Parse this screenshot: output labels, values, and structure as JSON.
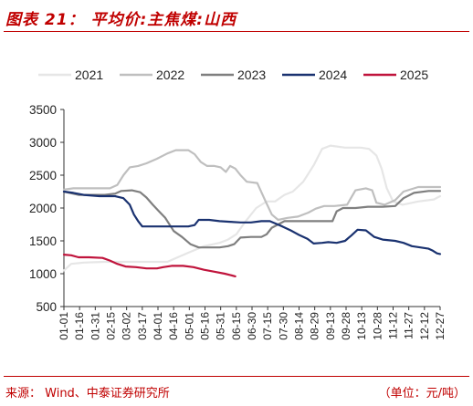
{
  "figure": {
    "title": "图表 21：  平均价:主焦煤:山西",
    "source": "来源：  Wind、中泰证券研究所",
    "unit": "（单位：元/吨）"
  },
  "chart_data": {
    "type": "line",
    "title": "平均价:主焦煤:山西",
    "ylim": [
      500,
      3500
    ],
    "yticks": [
      500,
      1000,
      1500,
      2000,
      2500,
      3000,
      3500
    ],
    "x_ticks": [
      "01-01",
      "01-16",
      "01-31",
      "02-15",
      "03-02",
      "03-17",
      "04-01",
      "04-16",
      "05-01",
      "05-16",
      "05-31",
      "06-15",
      "06-30",
      "07-15",
      "07-30",
      "08-14",
      "08-29",
      "09-13",
      "09-28",
      "10-13",
      "10-28",
      "11-12",
      "11-27",
      "12-12",
      "12-27"
    ],
    "x_unit": "day_of_year",
    "xlim": [
      1,
      361
    ],
    "grid": false,
    "legend_position": "top",
    "series": [
      {
        "name": "2021",
        "color": "#e6e6e6",
        "points": [
          [
            1,
            1050
          ],
          [
            8,
            1150
          ],
          [
            20,
            1170
          ],
          [
            40,
            1180
          ],
          [
            60,
            1180
          ],
          [
            80,
            1180
          ],
          [
            100,
            1180
          ],
          [
            110,
            1250
          ],
          [
            120,
            1320
          ],
          [
            135,
            1420
          ],
          [
            150,
            1470
          ],
          [
            158,
            1520
          ],
          [
            166,
            1600
          ],
          [
            175,
            1800
          ],
          [
            185,
            2000
          ],
          [
            195,
            2100
          ],
          [
            203,
            2100
          ],
          [
            212,
            2200
          ],
          [
            220,
            2250
          ],
          [
            230,
            2400
          ],
          [
            240,
            2650
          ],
          [
            248,
            2900
          ],
          [
            256,
            2950
          ],
          [
            270,
            2920
          ],
          [
            285,
            2920
          ],
          [
            293,
            2900
          ],
          [
            300,
            2800
          ],
          [
            305,
            2600
          ],
          [
            310,
            2300
          ],
          [
            316,
            2100
          ],
          [
            325,
            2050
          ],
          [
            340,
            2100
          ],
          [
            355,
            2130
          ],
          [
            361,
            2180
          ]
        ]
      },
      {
        "name": "2022",
        "color": "#bfbfbf",
        "points": [
          [
            1,
            2280
          ],
          [
            10,
            2300
          ],
          [
            30,
            2300
          ],
          [
            45,
            2300
          ],
          [
            52,
            2350
          ],
          [
            58,
            2500
          ],
          [
            64,
            2620
          ],
          [
            72,
            2640
          ],
          [
            80,
            2680
          ],
          [
            90,
            2750
          ],
          [
            100,
            2830
          ],
          [
            108,
            2880
          ],
          [
            120,
            2880
          ],
          [
            126,
            2820
          ],
          [
            132,
            2700
          ],
          [
            138,
            2640
          ],
          [
            145,
            2640
          ],
          [
            151,
            2620
          ],
          [
            156,
            2550
          ],
          [
            160,
            2640
          ],
          [
            165,
            2600
          ],
          [
            170,
            2500
          ],
          [
            176,
            2400
          ],
          [
            186,
            2380
          ],
          [
            194,
            2100
          ],
          [
            200,
            1900
          ],
          [
            206,
            1820
          ],
          [
            215,
            1850
          ],
          [
            225,
            1870
          ],
          [
            235,
            1930
          ],
          [
            242,
            1990
          ],
          [
            250,
            2030
          ],
          [
            260,
            2030
          ],
          [
            272,
            2050
          ],
          [
            280,
            2270
          ],
          [
            290,
            2300
          ],
          [
            296,
            2270
          ],
          [
            300,
            2080
          ],
          [
            308,
            2050
          ],
          [
            318,
            2120
          ],
          [
            326,
            2250
          ],
          [
            340,
            2320
          ],
          [
            361,
            2320
          ]
        ]
      },
      {
        "name": "2023",
        "color": "#7f7f7f",
        "points": [
          [
            1,
            2250
          ],
          [
            15,
            2200
          ],
          [
            30,
            2200
          ],
          [
            40,
            2200
          ],
          [
            50,
            2220
          ],
          [
            56,
            2260
          ],
          [
            66,
            2270
          ],
          [
            74,
            2240
          ],
          [
            80,
            2160
          ],
          [
            86,
            2050
          ],
          [
            92,
            1950
          ],
          [
            98,
            1850
          ],
          [
            106,
            1650
          ],
          [
            114,
            1560
          ],
          [
            122,
            1450
          ],
          [
            130,
            1400
          ],
          [
            140,
            1400
          ],
          [
            150,
            1400
          ],
          [
            158,
            1420
          ],
          [
            164,
            1450
          ],
          [
            170,
            1550
          ],
          [
            180,
            1560
          ],
          [
            190,
            1560
          ],
          [
            195,
            1600
          ],
          [
            200,
            1700
          ],
          [
            206,
            1750
          ],
          [
            212,
            1800
          ],
          [
            220,
            1800
          ],
          [
            230,
            1800
          ],
          [
            240,
            1800
          ],
          [
            248,
            1800
          ],
          [
            258,
            1800
          ],
          [
            262,
            1950
          ],
          [
            268,
            2000
          ],
          [
            280,
            2000
          ],
          [
            292,
            2020
          ],
          [
            306,
            2020
          ],
          [
            318,
            2030
          ],
          [
            326,
            2150
          ],
          [
            336,
            2230
          ],
          [
            350,
            2260
          ],
          [
            361,
            2260
          ]
        ]
      },
      {
        "name": "2024",
        "color": "#1a3270",
        "points": [
          [
            1,
            2250
          ],
          [
            10,
            2230
          ],
          [
            20,
            2200
          ],
          [
            35,
            2180
          ],
          [
            50,
            2180
          ],
          [
            58,
            2150
          ],
          [
            64,
            2050
          ],
          [
            68,
            1900
          ],
          [
            72,
            1800
          ],
          [
            76,
            1720
          ],
          [
            90,
            1720
          ],
          [
            100,
            1720
          ],
          [
            110,
            1720
          ],
          [
            120,
            1720
          ],
          [
            126,
            1740
          ],
          [
            130,
            1820
          ],
          [
            140,
            1820
          ],
          [
            150,
            1800
          ],
          [
            160,
            1790
          ],
          [
            170,
            1780
          ],
          [
            180,
            1780
          ],
          [
            190,
            1800
          ],
          [
            198,
            1800
          ],
          [
            204,
            1760
          ],
          [
            210,
            1720
          ],
          [
            218,
            1660
          ],
          [
            226,
            1590
          ],
          [
            234,
            1530
          ],
          [
            240,
            1460
          ],
          [
            248,
            1470
          ],
          [
            254,
            1480
          ],
          [
            262,
            1470
          ],
          [
            270,
            1500
          ],
          [
            276,
            1580
          ],
          [
            282,
            1670
          ],
          [
            290,
            1660
          ],
          [
            298,
            1560
          ],
          [
            306,
            1520
          ],
          [
            318,
            1500
          ],
          [
            326,
            1470
          ],
          [
            334,
            1420
          ],
          [
            342,
            1400
          ],
          [
            350,
            1380
          ],
          [
            354,
            1350
          ],
          [
            358,
            1310
          ],
          [
            361,
            1300
          ]
        ]
      },
      {
        "name": "2025",
        "color": "#c0143c",
        "points": [
          [
            1,
            1290
          ],
          [
            8,
            1280
          ],
          [
            15,
            1250
          ],
          [
            25,
            1250
          ],
          [
            38,
            1240
          ],
          [
            45,
            1200
          ],
          [
            52,
            1150
          ],
          [
            60,
            1110
          ],
          [
            70,
            1100
          ],
          [
            80,
            1080
          ],
          [
            90,
            1080
          ],
          [
            96,
            1100
          ],
          [
            104,
            1120
          ],
          [
            115,
            1120
          ],
          [
            125,
            1100
          ],
          [
            135,
            1060
          ],
          [
            145,
            1030
          ],
          [
            155,
            1000
          ],
          [
            160,
            980
          ],
          [
            165,
            960
          ]
        ]
      }
    ]
  }
}
